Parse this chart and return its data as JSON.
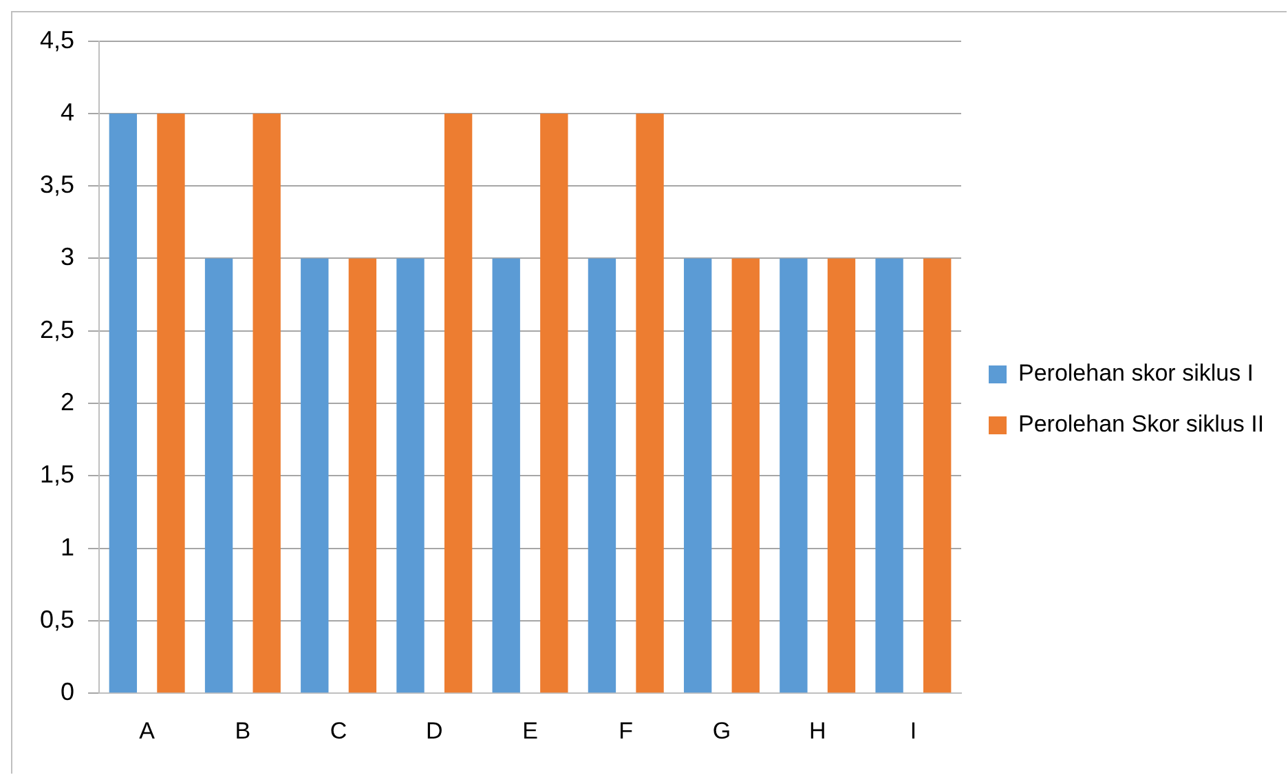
{
  "chart_data": {
    "type": "bar",
    "categories": [
      "A",
      "B",
      "C",
      "D",
      "E",
      "F",
      "G",
      "H",
      "I"
    ],
    "series": [
      {
        "name": "Perolehan skor siklus I",
        "color": "#5b9bd5",
        "values": [
          4,
          3,
          3,
          3,
          3,
          3,
          3,
          3,
          3
        ]
      },
      {
        "name": "Perolehan Skor siklus II",
        "color": "#ed7d31",
        "values": [
          4,
          4,
          3,
          4,
          4,
          4,
          3,
          3,
          3
        ]
      }
    ],
    "ylim": [
      0,
      4.5
    ],
    "yticks": [
      0,
      {
        "value": 0.5,
        "label": "0,5"
      },
      1,
      {
        "value": 1.5,
        "label": "1,5"
      },
      2,
      {
        "value": 2.5,
        "label": "2,5"
      },
      3,
      {
        "value": 3.5,
        "label": "3,5"
      },
      4,
      {
        "value": 4.5,
        "label": "4,5"
      }
    ],
    "grid": "y",
    "legend": "right"
  }
}
